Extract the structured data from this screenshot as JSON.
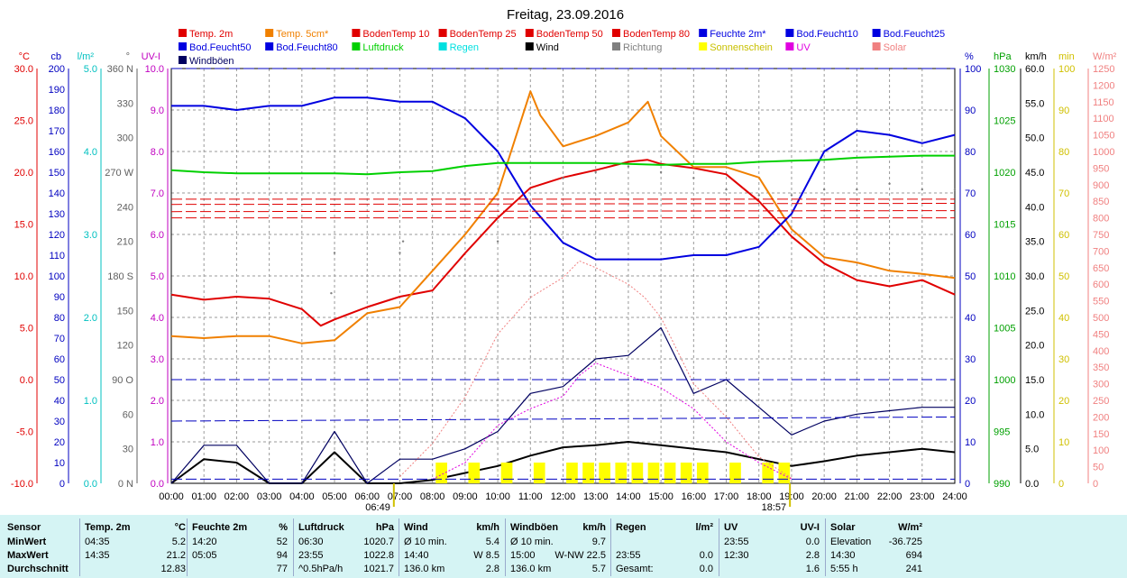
{
  "chart_data": {
    "type": "line",
    "title": "Freitag, 23.09.2016",
    "x_ticks": [
      "00:00",
      "01:00",
      "02:00",
      "03:00",
      "04:00",
      "05:00",
      "06:00",
      "07:00",
      "08:00",
      "09:00",
      "10:00",
      "11:00",
      "12:00",
      "13:00",
      "14:00",
      "15:00",
      "16:00",
      "17:00",
      "18:00",
      "19:00",
      "20:00",
      "21:00",
      "22:00",
      "23:00",
      "24:00"
    ],
    "sunrise": "06:49",
    "sunset": "18:57",
    "legend": [
      {
        "label": "Temp. 2m",
        "color": "#e00000"
      },
      {
        "label": "Temp. 5cm*",
        "color": "#f08000"
      },
      {
        "label": "BodenTemp 10",
        "color": "#e00000"
      },
      {
        "label": "BodenTemp 25",
        "color": "#e00000"
      },
      {
        "label": "BodenTemp 50",
        "color": "#e00000"
      },
      {
        "label": "BodenTemp 80",
        "color": "#e00000"
      },
      {
        "label": "Feuchte 2m*",
        "color": "#0000e0"
      },
      {
        "label": "Bod.Feucht10",
        "color": "#0000e0"
      },
      {
        "label": "Bod.Feucht25",
        "color": "#0000e0"
      },
      {
        "label": "Bod.Feucht50",
        "color": "#0000e0"
      },
      {
        "label": "Bod.Feucht80",
        "color": "#0000e0"
      },
      {
        "label": "Luftdruck",
        "color": "#00d000"
      },
      {
        "label": "Regen",
        "color": "#00e0e0"
      },
      {
        "label": "Wind",
        "color": "#000000"
      },
      {
        "label": "Richtung",
        "color": "#808080"
      },
      {
        "label": "Sonnenschein",
        "color": "#ffff00"
      },
      {
        "label": "UV",
        "color": "#e000e0"
      },
      {
        "label": "Solar",
        "color": "#f08080"
      },
      {
        "label": "Windböen",
        "color": "#000060"
      }
    ],
    "axes_left": [
      {
        "unit": "°C",
        "color": "#e00000",
        "ticks": [
          "30.0",
          "25.0",
          "20.0",
          "15.0",
          "10.0",
          "5.0",
          "0.0",
          "-5.0",
          "-10.0"
        ],
        "range": [
          -10,
          30
        ]
      },
      {
        "unit": "cb",
        "color": "#0000c0",
        "ticks": [
          "200",
          "190",
          "180",
          "170",
          "160",
          "150",
          "140",
          "130",
          "120",
          "110",
          "100",
          "90",
          "80",
          "70",
          "60",
          "50",
          "40",
          "30",
          "20",
          "10",
          "0"
        ],
        "range": [
          0,
          200
        ]
      },
      {
        "unit": "l/m²",
        "color": "#00c0c0",
        "ticks": [
          "5.0",
          "4.0",
          "3.0",
          "2.0",
          "1.0",
          "0.0"
        ],
        "range": [
          0,
          5
        ]
      },
      {
        "unit": "°",
        "color": "#606060",
        "ticks": [
          "360 N",
          "330",
          "300",
          "270 W",
          "240",
          "210",
          "180 S",
          "150",
          "120",
          "90 O",
          "60",
          "30",
          "0 N"
        ],
        "range": [
          0,
          360
        ]
      },
      {
        "unit": "UV-I",
        "color": "#c000c0",
        "ticks": [
          "10.0",
          "9.0",
          "8.0",
          "7.0",
          "6.0",
          "5.0",
          "4.0",
          "3.0",
          "2.0",
          "1.0",
          "0.0"
        ],
        "range": [
          0,
          10
        ]
      }
    ],
    "axes_right": [
      {
        "unit": "%",
        "color": "#0000c0",
        "ticks": [
          "100",
          "90",
          "80",
          "70",
          "60",
          "50",
          "40",
          "30",
          "20",
          "10",
          "0"
        ],
        "range": [
          0,
          100
        ]
      },
      {
        "unit": "hPa",
        "color": "#00a000",
        "ticks": [
          "1030",
          "1025",
          "1020",
          "1015",
          "1010",
          "1005",
          "1000",
          "995",
          "990"
        ],
        "range": [
          990,
          1030
        ]
      },
      {
        "unit": "km/h",
        "color": "#000000",
        "ticks": [
          "60.0",
          "55.0",
          "50.0",
          "45.0",
          "40.0",
          "35.0",
          "30.0",
          "25.0",
          "20.0",
          "15.0",
          "10.0",
          "5.0",
          "0.0"
        ],
        "range": [
          0,
          60
        ]
      },
      {
        "unit": "min",
        "color": "#d0c000",
        "ticks": [
          "100",
          "90",
          "80",
          "70",
          "60",
          "50",
          "40",
          "30",
          "20",
          "10",
          "0"
        ],
        "range": [
          0,
          100
        ]
      },
      {
        "unit": "W/m²",
        "color": "#f08080",
        "ticks": [
          "1250",
          "1200",
          "1150",
          "1100",
          "1050",
          "1000",
          "950",
          "900",
          "850",
          "800",
          "750",
          "700",
          "650",
          "600",
          "550",
          "500",
          "450",
          "400",
          "350",
          "300",
          "250",
          "200",
          "150",
          "100",
          "50",
          "0"
        ],
        "range": [
          0,
          1250
        ]
      }
    ],
    "series": [
      {
        "name": "Temp. 2m",
        "unit": "°C",
        "color": "#e00000",
        "x": [
          0,
          1,
          2,
          3,
          4,
          4.58,
          5,
          6,
          7,
          8,
          9,
          10,
          11,
          12,
          13,
          14,
          14.58,
          15,
          16,
          17,
          18,
          19,
          20,
          21,
          22,
          23,
          24
        ],
        "values": [
          8.2,
          7.7,
          8.0,
          7.8,
          6.8,
          5.2,
          5.8,
          7.0,
          8.0,
          8.6,
          12.2,
          15.6,
          18.5,
          19.5,
          20.2,
          21.0,
          21.2,
          20.8,
          20.4,
          19.8,
          17.2,
          13.8,
          11.2,
          9.6,
          9.0,
          9.6,
          8.2
        ]
      },
      {
        "name": "Temp. 5cm*",
        "unit": "°C",
        "color": "#f08000",
        "x": [
          0,
          1,
          2,
          3,
          4,
          5,
          6,
          7,
          8,
          9,
          10,
          11,
          11.3,
          12,
          13,
          14,
          14.6,
          15,
          16,
          17,
          18,
          19,
          20,
          21,
          22,
          23,
          24
        ],
        "values": [
          4.2,
          4.0,
          4.2,
          4.2,
          3.5,
          3.8,
          6.4,
          7.0,
          10.5,
          14.0,
          18.0,
          27.8,
          25.5,
          22.5,
          23.5,
          24.8,
          26.8,
          23.5,
          20.5,
          20.5,
          19.5,
          14.5,
          11.8,
          11.3,
          10.5,
          10.2,
          9.8
        ]
      },
      {
        "name": "Feuchte 2m*",
        "unit": "%",
        "color": "#0000e0",
        "x": [
          0,
          1,
          2,
          3,
          4,
          5,
          6,
          7,
          8,
          9,
          10,
          11,
          12,
          13,
          14,
          14.33,
          15,
          16,
          17,
          18,
          19,
          20,
          21,
          22,
          23,
          24
        ],
        "values": [
          91,
          91,
          90,
          91,
          91,
          93,
          93,
          92,
          92,
          88,
          80,
          67,
          58,
          54,
          54,
          54,
          54,
          55,
          55,
          57,
          65,
          80,
          85,
          84,
          82,
          84
        ]
      },
      {
        "name": "Luftdruck",
        "unit": "hPa",
        "color": "#00d000",
        "x": [
          0,
          1,
          2,
          3,
          4,
          5,
          6,
          7,
          8,
          9,
          10,
          11,
          12,
          13,
          14,
          15,
          16,
          17,
          18,
          19,
          20,
          21,
          22,
          23,
          24
        ],
        "values": [
          1020.2,
          1020.0,
          1019.9,
          1019.9,
          1019.9,
          1019.9,
          1019.8,
          1020.0,
          1020.1,
          1020.6,
          1020.9,
          1020.9,
          1020.9,
          1020.9,
          1020.8,
          1020.7,
          1020.8,
          1020.8,
          1021.0,
          1021.1,
          1021.2,
          1021.4,
          1021.5,
          1021.6,
          1021.6
        ]
      },
      {
        "name": "Wind",
        "unit": "km/h",
        "color": "#000000",
        "x": [
          0,
          1,
          2,
          3,
          4,
          5,
          6,
          7,
          8,
          9,
          10,
          11,
          12,
          13,
          14,
          15,
          16,
          17,
          18,
          19,
          20,
          21,
          22,
          23,
          24
        ],
        "values": [
          0,
          3.5,
          3.0,
          0,
          0,
          4.5,
          0,
          0,
          0.5,
          1.5,
          2.5,
          4.0,
          5.2,
          5.5,
          6.0,
          5.5,
          5.0,
          4.5,
          3.5,
          2.5,
          3.2,
          4.0,
          4.5,
          5.0,
          4.5
        ]
      },
      {
        "name": "Windböen",
        "unit": "km/h",
        "color": "#000060",
        "x": [
          0,
          1,
          2,
          3,
          4,
          5,
          6,
          7,
          8,
          9,
          10,
          11,
          12,
          13,
          14,
          15,
          16,
          17,
          18,
          19,
          20,
          21,
          22,
          23,
          24
        ],
        "values": [
          0,
          5.5,
          5.5,
          0,
          0,
          7.5,
          0,
          3.5,
          3.5,
          5.0,
          7.5,
          13.0,
          14.0,
          18.0,
          18.5,
          22.5,
          13.0,
          15.0,
          11.0,
          7.0,
          9.0,
          10.0,
          10.5,
          11.0,
          11.0
        ]
      },
      {
        "name": "Richtung",
        "unit": "°",
        "color": "#808080",
        "x": [
          0,
          4.9,
          5.0,
          7.0,
          7.1,
          10.0,
          11,
          12,
          13,
          14,
          15,
          16,
          17,
          18,
          19,
          20,
          21,
          22,
          23,
          24
        ],
        "values": [
          165,
          165,
          200,
          200,
          210,
          210,
          245,
          265,
          270,
          275,
          270,
          265,
          255,
          250,
          250,
          255,
          255,
          260,
          255,
          255
        ]
      },
      {
        "name": "Sonnenschein",
        "unit": "min",
        "color": "#ffff00",
        "x": [
          8.1,
          9.1,
          10.1,
          11.1,
          12.1,
          12.6,
          13.1,
          13.6,
          14.1,
          14.6,
          15.1,
          15.6,
          16.1,
          17.1,
          18.1,
          18.6
        ],
        "values": [
          5,
          5,
          5,
          5,
          5,
          5,
          5,
          5,
          5,
          5,
          5,
          5,
          5,
          5,
          5,
          5
        ]
      },
      {
        "name": "UV",
        "unit": "UV-I",
        "color": "#e000e0",
        "x": [
          8,
          9,
          10,
          11,
          12,
          12.5,
          13,
          14,
          15,
          16,
          17,
          18,
          19
        ],
        "values": [
          0.1,
          0.5,
          1.4,
          1.8,
          2.1,
          2.6,
          2.9,
          2.6,
          2.3,
          1.8,
          1.0,
          0.5,
          0.1
        ]
      },
      {
        "name": "Solar",
        "unit": "W/m²",
        "color": "#f08080",
        "x": [
          7,
          8,
          9,
          10,
          11,
          12,
          12.5,
          13,
          14,
          14.5,
          15,
          16,
          17,
          18,
          19
        ],
        "values": [
          20,
          120,
          260,
          450,
          560,
          620,
          670,
          650,
          600,
          560,
          500,
          300,
          200,
          80,
          15
        ]
      },
      {
        "name": "BodenTemp 10",
        "unit": "°C",
        "color": "#e00000",
        "x": [
          0,
          24
        ],
        "values": [
          17.4,
          17.4
        ]
      },
      {
        "name": "BodenTemp 25",
        "unit": "°C",
        "color": "#e00000",
        "x": [
          0,
          24
        ],
        "values": [
          16.9,
          17.0
        ]
      },
      {
        "name": "BodenTemp 50",
        "unit": "°C",
        "color": "#e00000",
        "x": [
          0,
          24
        ],
        "values": [
          16.2,
          16.3
        ]
      },
      {
        "name": "BodenTemp 80",
        "unit": "°C",
        "color": "#e00000",
        "x": [
          0,
          24
        ],
        "values": [
          15.6,
          15.6
        ]
      },
      {
        "name": "Bod.Feucht10",
        "unit": "cb",
        "color": "#0000c0",
        "x": [
          0,
          24
        ],
        "values": [
          2,
          2
        ]
      },
      {
        "name": "Bod.Feucht25",
        "unit": "cb",
        "color": "#0000c0",
        "x": [
          0,
          24
        ],
        "values": [
          30,
          32
        ]
      },
      {
        "name": "Bod.Feucht50",
        "unit": "cb",
        "color": "#0000c0",
        "x": [
          0,
          24
        ],
        "values": [
          50,
          50
        ]
      },
      {
        "name": "Bod.Feucht80",
        "unit": "cb",
        "color": "#0000c0",
        "x": [
          0,
          24
        ],
        "values": [
          200,
          200
        ]
      }
    ]
  },
  "stats": {
    "sensor": {
      "header": "Sensor",
      "rows": [
        "MinWert",
        "MaxWert",
        "Durchschnitt"
      ]
    },
    "temp": {
      "header": "Temp. 2m",
      "unit": "°C",
      "rows": [
        [
          "04:35",
          "5.2"
        ],
        [
          "14:35",
          "21.2"
        ],
        [
          "",
          "12.83"
        ]
      ]
    },
    "feuchte": {
      "header": "Feuchte 2m",
      "unit": "%",
      "rows": [
        [
          "14:20",
          "52"
        ],
        [
          "05:05",
          "94"
        ],
        [
          "",
          "77"
        ]
      ]
    },
    "luftdruck": {
      "header": "Luftdruck",
      "unit": "hPa",
      "rows": [
        [
          "06:30",
          "1020.7"
        ],
        [
          "23:55",
          "1022.8"
        ],
        [
          "^0.5hPa/h",
          "1021.7"
        ]
      ]
    },
    "wind": {
      "header": "Wind",
      "unit": "km/h",
      "rows": [
        [
          "Ø 10 min.",
          "5.4"
        ],
        [
          "14:40",
          "W 8.5"
        ],
        [
          "136.0 km",
          "2.8"
        ]
      ]
    },
    "windboeen": {
      "header": "Windböen",
      "unit": "km/h",
      "rows": [
        [
          "Ø 10 min.",
          "9.7"
        ],
        [
          "15:00",
          "W-NW 22.5"
        ],
        [
          "136.0 km",
          "5.7"
        ]
      ]
    },
    "regen": {
      "header": "Regen",
      "unit": "l/m²",
      "rows": [
        [
          "",
          ""
        ],
        [
          "23:55",
          "0.0"
        ],
        [
          "Gesamt:",
          "0.0"
        ]
      ]
    },
    "uv": {
      "header": "UV",
      "unit": "UV-I",
      "rows": [
        [
          "23:55",
          "0.0"
        ],
        [
          "12:30",
          "2.8"
        ],
        [
          "",
          "1.6"
        ]
      ]
    },
    "solar": {
      "header": "Solar",
      "unit": "W/m²",
      "rows": [
        [
          "Elevation",
          "-36.725"
        ],
        [
          "14:30",
          "694"
        ],
        [
          "5:55 h",
          "241"
        ]
      ]
    }
  }
}
